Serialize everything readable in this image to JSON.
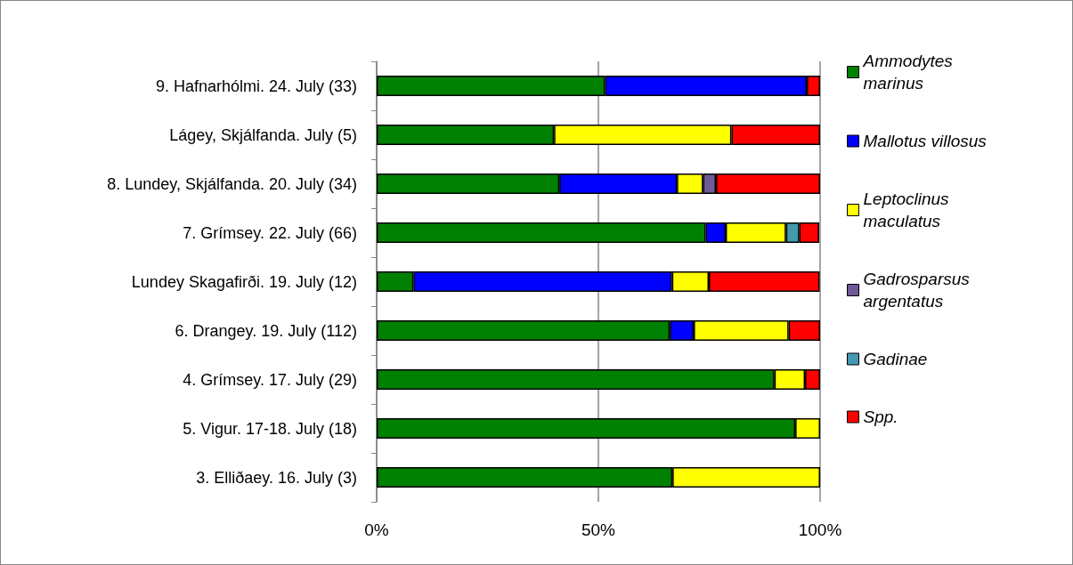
{
  "chart_data": {
    "type": "bar",
    "orientation": "horizontal",
    "stacked": true,
    "categories": [
      "9. Hafnarhólmi. 24. July (33)",
      "Lágey, Skjálfanda. July (5)",
      "8. Lundey, Skjálfanda. 20. July (34)",
      "7. Grímsey. 22. July (66)",
      "Lundey Skagafirði. 19. July (12)",
      "6. Drangey. 19. July (112)",
      "4. Grímsey. 17. July (29)",
      "5. Vigur. 17-18. July (18)",
      "3. Elliðaey. 16. July (3)"
    ],
    "series": [
      {
        "name": "Ammodytes marinus",
        "color": "#008000",
        "values": [
          51.5,
          40,
          41.2,
          74.2,
          8.3,
          66.1,
          89.7,
          94.4,
          66.7
        ]
      },
      {
        "name": "Mallotus villosus",
        "color": "#0000ff",
        "values": [
          45.5,
          null,
          26.5,
          4.5,
          58.3,
          5.4,
          null,
          null,
          null
        ]
      },
      {
        "name": "Leptoclinus maculatus",
        "color": "#ffff00",
        "values": [
          null,
          40,
          5.9,
          13.6,
          8.3,
          21.4,
          6.9,
          5.6,
          33.3
        ]
      },
      {
        "name": "Gadrosparsus argentatus",
        "color": "#705a96",
        "values": [
          null,
          null,
          2.9,
          null,
          null,
          null,
          null,
          null,
          null
        ]
      },
      {
        "name": "Gadinae",
        "color": "#4499b0",
        "values": [
          null,
          null,
          null,
          3.0,
          null,
          null,
          null,
          null,
          null
        ]
      },
      {
        "name": "Spp.",
        "color": "#ff0000",
        "values": [
          3.0,
          20,
          23.5,
          4.5,
          25,
          7.1,
          3.4,
          null,
          null
        ]
      }
    ],
    "xlim": [
      0,
      100
    ],
    "xticks": [
      {
        "value": 0,
        "label": "0%"
      },
      {
        "value": 50,
        "label": "50%"
      },
      {
        "value": 100,
        "label": "100%"
      }
    ],
    "grid": "x",
    "legend": "right"
  }
}
